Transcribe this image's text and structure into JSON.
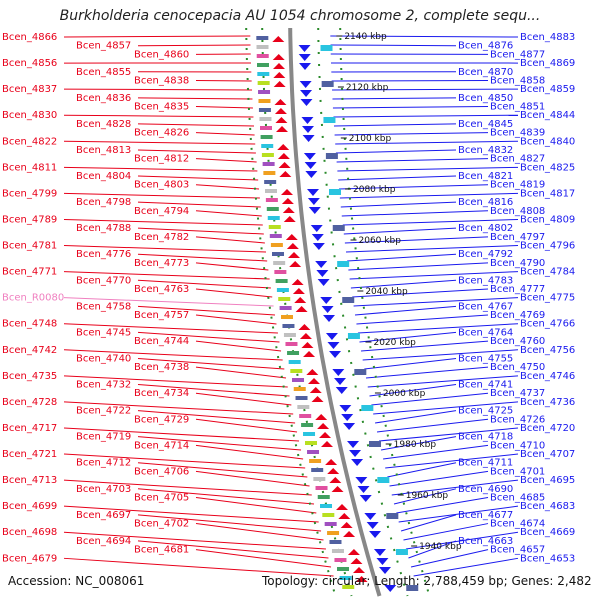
{
  "title": "Burkholderia cenocepacia AU 1054 chromosome 2, complete sequ...",
  "footer": {
    "accession": "Accession: NC_008061",
    "summary": "Topology: circular; Length: 2,788,459 bp; Genes: 2,482"
  },
  "colors": {
    "forward_strand": "#e8001a",
    "reverse_strand": "#1a1aee",
    "rna_label": "#f080c0",
    "backbone": "#888888",
    "dotted_guide": "#2a8a2a"
  },
  "kbp_ticks": [
    "2140 kbp",
    "2120 kbp",
    "2100 kbp",
    "2080 kbp",
    "2060 kbp",
    "2040 kbp",
    "2020 kbp",
    "2000 kbp",
    "1980 kbp",
    "1960 kbp",
    "1940 kbp"
  ],
  "left_labels": [
    "Bcen_4866",
    "Bcen_4857",
    "Bcen_4860",
    "Bcen_4856",
    "Bcen_4855",
    "Bcen_4838",
    "Bcen_4837",
    "Bcen_4836",
    "Bcen_4835",
    "Bcen_4830",
    "Bcen_4828",
    "Bcen_4826",
    "Bcen_4822",
    "Bcen_4813",
    "Bcen_4812",
    "Bcen_4811",
    "Bcen_4804",
    "Bcen_4803",
    "Bcen_4799",
    "Bcen_4798",
    "Bcen_4794",
    "Bcen_4789",
    "Bcen_4788",
    "Bcen_4782",
    "Bcen_4781",
    "Bcen_4776",
    "Bcen_4773",
    "Bcen_4771",
    "Bcen_4770",
    "Bcen_4763",
    "Bcen_R0080",
    "Bcen_4758",
    "Bcen_4757",
    "Bcen_4748",
    "Bcen_4745",
    "Bcen_4744",
    "Bcen_4742",
    "Bcen_4740",
    "Bcen_4738",
    "Bcen_4735",
    "Bcen_4732",
    "Bcen_4734",
    "Bcen_4728",
    "Bcen_4722",
    "Bcen_4729",
    "Bcen_4717",
    "Bcen_4719",
    "Bcen_4714",
    "Bcen_4721",
    "Bcen_4712",
    "Bcen_4706",
    "Bcen_4713",
    "Bcen_4703",
    "Bcen_4705",
    "Bcen_4699",
    "Bcen_4697",
    "Bcen_4702",
    "Bcen_4698",
    "Bcen_4694",
    "Bcen_4681",
    "Bcen_4679"
  ],
  "right_labels": [
    "Bcen_4883",
    "Bcen_4876",
    "Bcen_4877",
    "Bcen_4869",
    "Bcen_4870",
    "Bcen_4858",
    "Bcen_4859",
    "Bcen_4850",
    "Bcen_4851",
    "Bcen_4844",
    "Bcen_4845",
    "Bcen_4839",
    "Bcen_4840",
    "Bcen_4832",
    "Bcen_4827",
    "Bcen_4825",
    "Bcen_4821",
    "Bcen_4819",
    "Bcen_4817",
    "Bcen_4816",
    "Bcen_4808",
    "Bcen_4809",
    "Bcen_4802",
    "Bcen_4797",
    "Bcen_4796",
    "Bcen_4792",
    "Bcen_4790",
    "Bcen_4784",
    "Bcen_4783",
    "Bcen_4777",
    "Bcen_4775",
    "Bcen_4767",
    "Bcen_4769",
    "Bcen_4766",
    "Bcen_4764",
    "Bcen_4760",
    "Bcen_4756",
    "Bcen_4755",
    "Bcen_4750",
    "Bcen_4746",
    "Bcen_4741",
    "Bcen_4737",
    "Bcen_4736",
    "Bcen_4725",
    "Bcen_4726",
    "Bcen_4720",
    "Bcen_4718",
    "Bcen_4710",
    "Bcen_4707",
    "Bcen_4711",
    "Bcen_4701",
    "Bcen_4695",
    "Bcen_4690",
    "Bcen_4685",
    "Bcen_4683",
    "Bcen_4677",
    "Bcen_4674",
    "Bcen_4669",
    "Bcen_4663",
    "Bcen_4657",
    "Bcen_4653"
  ]
}
